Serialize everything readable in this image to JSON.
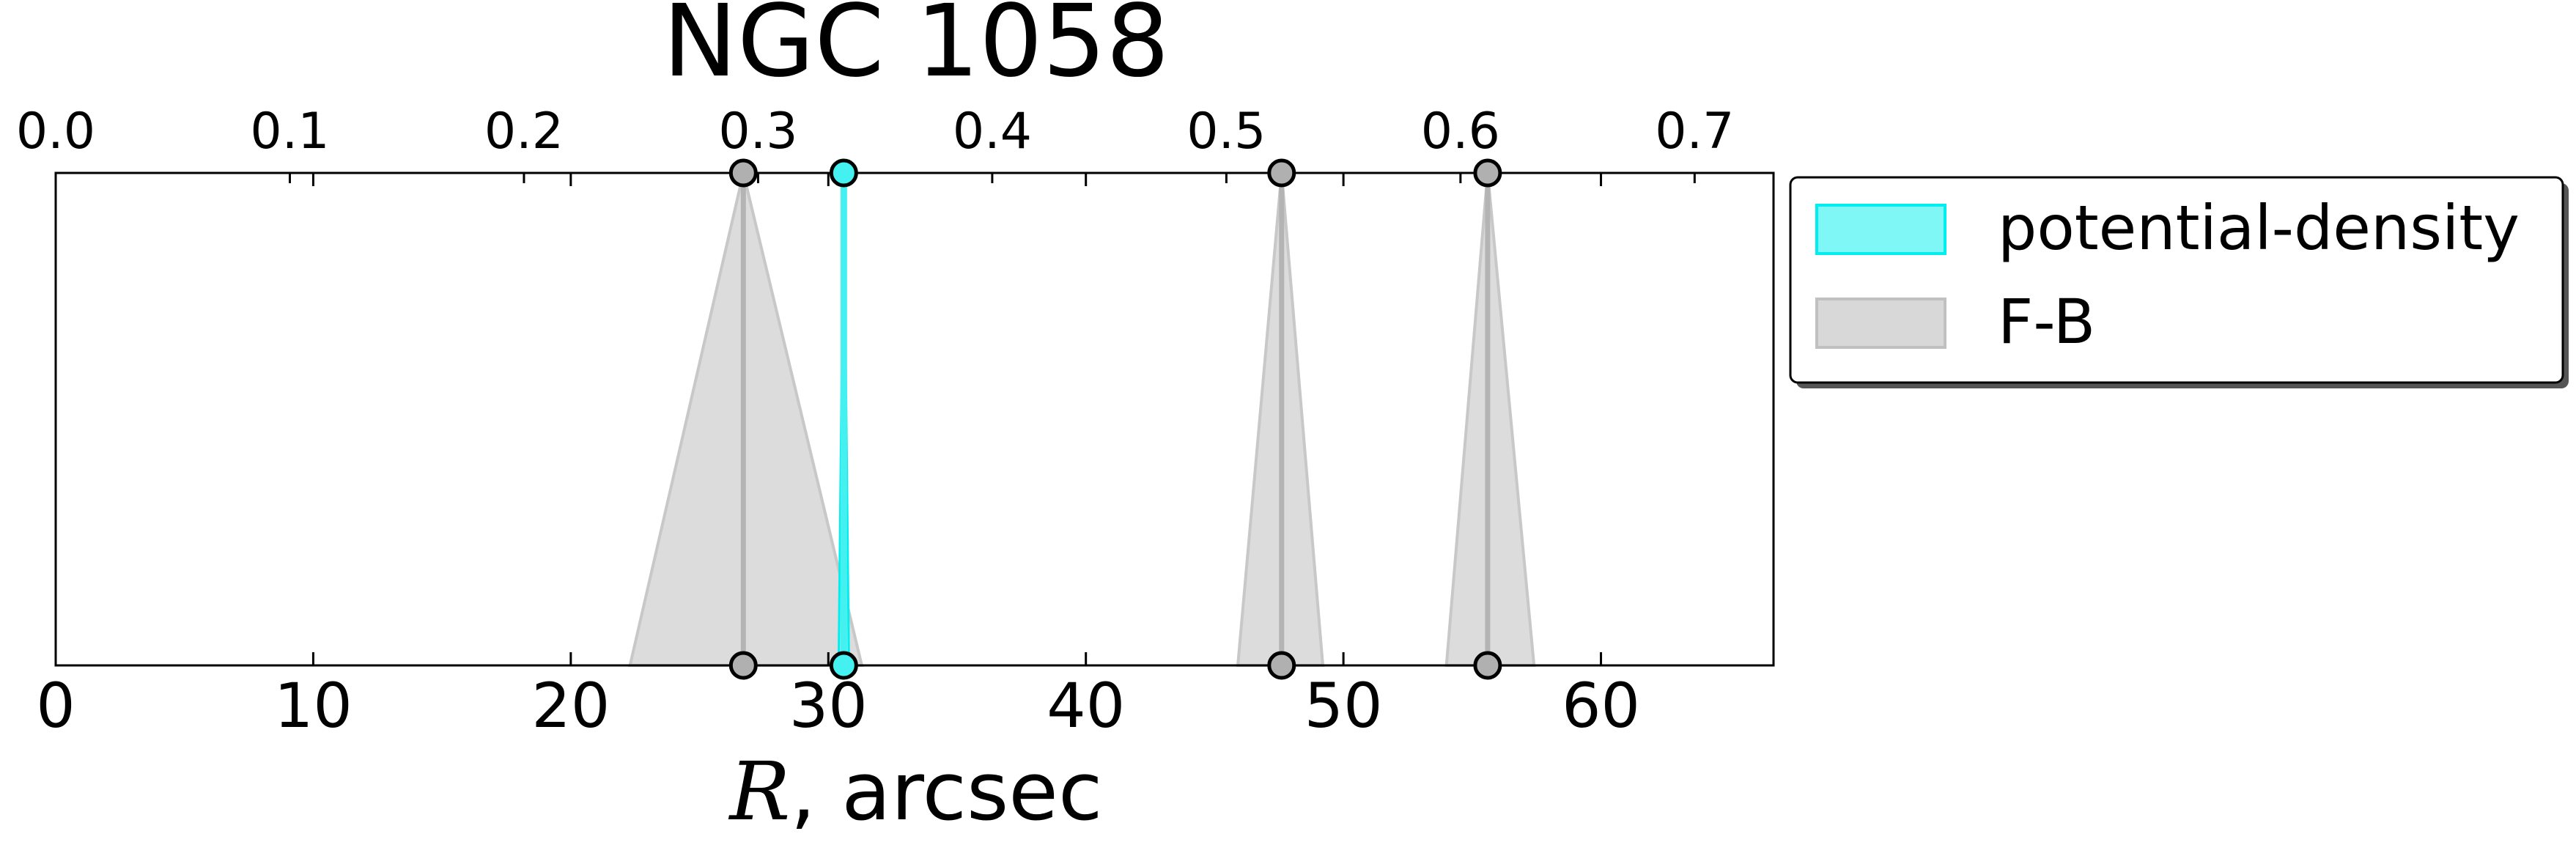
{
  "chart_data": {
    "type": "line",
    "title": "NGC 1058",
    "xlabel_italic": "R",
    "xlabel_rest": ", arcsec",
    "xlim": [
      0,
      66.7
    ],
    "x_ticks": [
      "0",
      "10",
      "20",
      "30",
      "40",
      "50",
      "60"
    ],
    "x_tick_values": [
      0,
      10,
      20,
      30,
      40,
      50,
      60
    ],
    "top_axis": {
      "ticks": [
        "0.0",
        "0.1",
        "0.2",
        "0.3",
        "0.4",
        "0.5",
        "0.6",
        "0.7"
      ],
      "tick_values": [
        0.0,
        0.1,
        0.2,
        0.3,
        0.4,
        0.5,
        0.6,
        0.7
      ],
      "scale_per_unit": 0.011
    },
    "legend": {
      "placement": "outside-right-top",
      "entries": [
        {
          "label": "potential-density",
          "color": "#00eeee"
        },
        {
          "label": "F-B",
          "color": "#aaaaaa"
        }
      ]
    },
    "series": [
      {
        "name": "potential-density",
        "color": "#00eeee",
        "bands": [
          {
            "center": 30.6,
            "bottom_low": 30.4,
            "bottom_high": 30.8
          }
        ]
      },
      {
        "name": "F-B",
        "color": "#aaaaaa",
        "bands": [
          {
            "center": 26.7,
            "bottom_low": 22.3,
            "bottom_high": 31.3
          },
          {
            "center": 47.6,
            "bottom_low": 45.9,
            "bottom_high": 49.2
          },
          {
            "center": 55.6,
            "bottom_low": 54.0,
            "bottom_high": 57.4
          }
        ]
      }
    ],
    "grid": false
  }
}
